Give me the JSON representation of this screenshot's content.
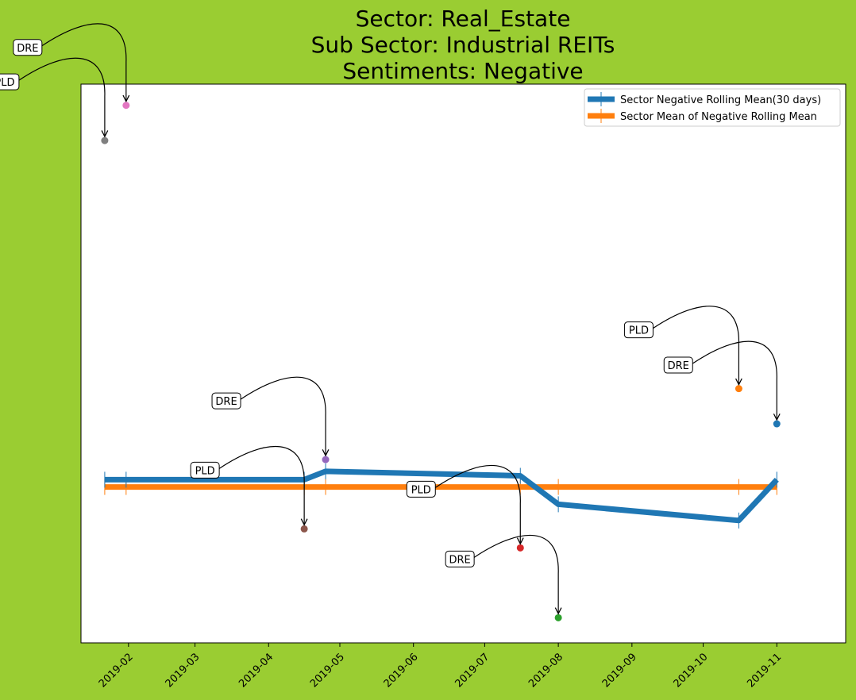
{
  "chart_data": {
    "type": "line",
    "title_lines": [
      "Sector:  Real_Estate",
      "Sub Sector:  Industrial REITs",
      "Sentiments:  Negative"
    ],
    "xlabel": "",
    "ylabel": "",
    "x_tick_labels": [
      "2019-02",
      "2019-03",
      "2019-04",
      "2019-05",
      "2019-06",
      "2019-07",
      "2019-08",
      "2019-09",
      "2019-10",
      "2019-11"
    ],
    "x_ticks": [
      "2019-02-01",
      "2019-03-01",
      "2019-04-01",
      "2019-05-01",
      "2019-06-01",
      "2019-07-01",
      "2019-08-01",
      "2019-09-01",
      "2019-10-01",
      "2019-11-01"
    ],
    "xlim": [
      "2019-01-12",
      "2019-11-30"
    ],
    "ylim": [
      0,
      100
    ],
    "y_ticks_shown": false,
    "grid": false,
    "legend_position": "top-right",
    "series": [
      {
        "name": "Sector Negative Rolling Mean(30 days)",
        "color": "#1f77b4",
        "markers": "vertical-bar",
        "x": [
          "2019-01-22",
          "2019-01-31",
          "2019-04-16",
          "2019-04-25",
          "2019-07-16",
          "2019-08-01",
          "2019-10-16",
          "2019-11-01"
        ],
        "y": [
          29.2,
          29.2,
          29.2,
          30.7,
          29.9,
          24.8,
          21.9,
          29.2
        ]
      },
      {
        "name": "Sector Mean of Negative Rolling Mean",
        "color": "#ff7f0e",
        "markers": "vertical-bar",
        "x": [
          "2019-01-22",
          "2019-01-31",
          "2019-04-16",
          "2019-04-25",
          "2019-07-16",
          "2019-08-01",
          "2019-10-16",
          "2019-11-01"
        ],
        "y": [
          27.9,
          27.9,
          27.9,
          27.9,
          27.9,
          27.9,
          27.9,
          27.9
        ]
      }
    ],
    "points": [
      {
        "label": "PLD",
        "x": "2019-01-22",
        "y": 89.9,
        "color": "#7f7f7f"
      },
      {
        "label": "DRE",
        "x": "2019-01-31",
        "y": 96.2,
        "color": "#e377c2"
      },
      {
        "label": "PLD",
        "x": "2019-04-16",
        "y": 20.4,
        "color": "#8c564b"
      },
      {
        "label": "DRE",
        "x": "2019-04-25",
        "y": 32.8,
        "color": "#9467bd"
      },
      {
        "label": "PLD",
        "x": "2019-07-16",
        "y": 17.0,
        "color": "#d62728"
      },
      {
        "label": "DRE",
        "x": "2019-08-01",
        "y": 4.5,
        "color": "#2ca02c"
      },
      {
        "label": "PLD",
        "x": "2019-10-16",
        "y": 45.5,
        "color": "#ff7f0e"
      },
      {
        "label": "DRE",
        "x": "2019-11-01",
        "y": 39.2,
        "color": "#1f77b4"
      }
    ]
  }
}
